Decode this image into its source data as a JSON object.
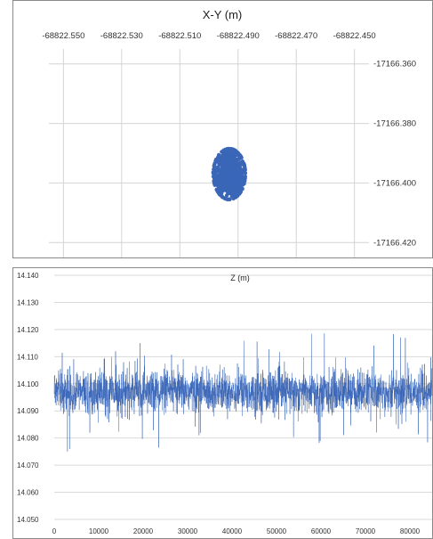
{
  "chart_data": [
    {
      "type": "scatter",
      "title": "X-Y (m)",
      "xlim": [
        -68822.555,
        -68822.445
      ],
      "ylim": [
        -17166.425,
        -17166.355
      ],
      "x_ticks": [
        "-68822.550",
        "-68822.530",
        "-68822.510",
        "-68822.490",
        "-68822.470",
        "-68822.450"
      ],
      "y_ticks": [
        "-17166.360",
        "-17166.380",
        "-17166.400",
        "-17166.420"
      ],
      "x_axis_position": "top",
      "y_axis_position": "right",
      "y_inverted": true,
      "grid": true,
      "cluster": {
        "center_x": -68822.493,
        "center_y": -17166.397,
        "spread_x": 0.0055,
        "spread_y": 0.0085,
        "n_points": 900
      },
      "marker_color": "#3a66b8"
    },
    {
      "type": "line",
      "title": "Z (m)",
      "xlim": [
        0,
        85000
      ],
      "ylim": [
        14.05,
        14.14
      ],
      "x_ticks": [
        "0",
        "10000",
        "20000",
        "30000",
        "40000",
        "50000",
        "60000",
        "70000",
        "80000"
      ],
      "y_ticks": [
        "14.140",
        "14.130",
        "14.120",
        "14.110",
        "14.100",
        "14.090",
        "14.080",
        "14.070",
        "14.060",
        "14.050"
      ],
      "grid": true,
      "series": [
        {
          "n_samples": 85000,
          "mean": 14.097,
          "typical_range": [
            14.09,
            14.104
          ],
          "extreme_range": [
            14.075,
            14.121
          ],
          "color": "#3a66b8"
        }
      ]
    }
  ]
}
